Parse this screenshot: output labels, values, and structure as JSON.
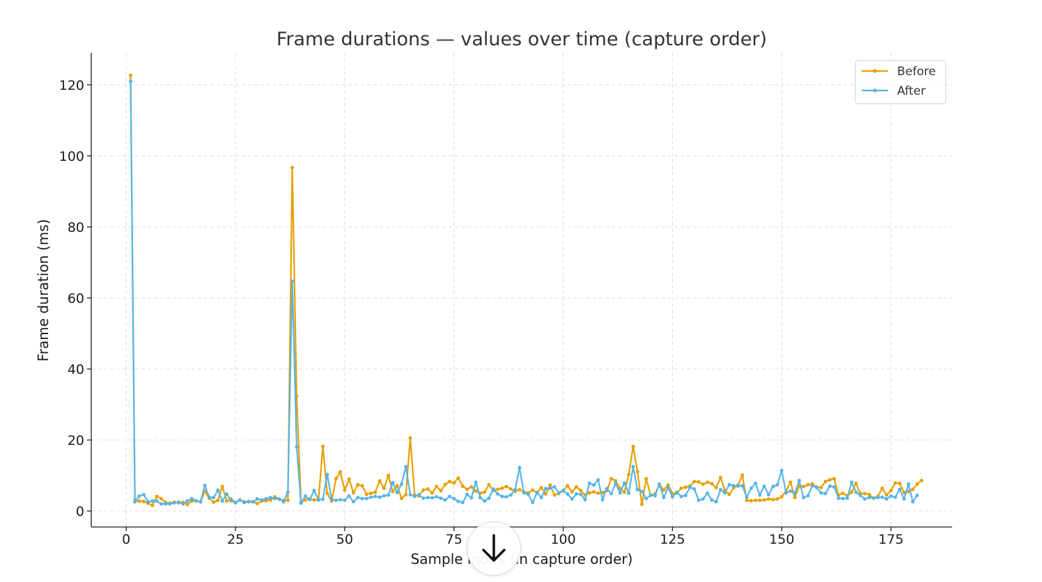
{
  "chart_data": {
    "type": "line",
    "title": "Frame durations — values over time (capture order)",
    "xlabel": "Sample index (in capture order)",
    "ylabel": "Frame duration (ms)",
    "xlim": [
      -8,
      189
    ],
    "ylim": [
      -4.5,
      129
    ],
    "xticks": [
      0,
      25,
      50,
      75,
      100,
      125,
      150,
      175
    ],
    "yticks": [
      0,
      20,
      40,
      60,
      80,
      100,
      120
    ],
    "grid": true,
    "legend_position": "top-right",
    "x_start": 1,
    "series": [
      {
        "name": "Before",
        "color": "#E69F00",
        "values": [
          122.7,
          3.0,
          2.8,
          2.7,
          2.2,
          1.6,
          4.1,
          3.5,
          2.4,
          2.2,
          2.5,
          2.3,
          2.4,
          1.8,
          2.8,
          2.9,
          2.6,
          5.6,
          3.6,
          2.5,
          3.0,
          6.9,
          2.8,
          3.4,
          2.4,
          3.1,
          2.6,
          2.7,
          2.6,
          2.1,
          2.8,
          2.9,
          3.1,
          4.0,
          3.3,
          3.0,
          3.0,
          96.7,
          32.3,
          2.5,
          3.1,
          3.4,
          3.1,
          3.2,
          18.2,
          5.0,
          2.8,
          9.1,
          11.0,
          5.9,
          9.0,
          5.1,
          7.4,
          7.1,
          4.7,
          5.0,
          5.3,
          8.5,
          6.4,
          10.0,
          5.5,
          7.1,
          3.6,
          4.6,
          20.6,
          4.5,
          4.2,
          5.9,
          6.2,
          5.1,
          6.9,
          5.7,
          7.5,
          8.3,
          7.9,
          9.3,
          7.0,
          6.1,
          6.8,
          5.6,
          5.0,
          5.3,
          7.4,
          5.8,
          6.1,
          6.4,
          6.9,
          6.2,
          5.6,
          6.0,
          5.4,
          5.1,
          5.9,
          5.1,
          6.6,
          4.8,
          7.3,
          4.5,
          4.9,
          5.7,
          7.1,
          5.4,
          6.8,
          5.8,
          4.5,
          5.1,
          5.4,
          5.0,
          5.2,
          5.8,
          9.1,
          8.5,
          6.4,
          5.3,
          10.3,
          18.2,
          11.1,
          1.9,
          9.1,
          4.4,
          4.8,
          7.5,
          5.9,
          7.3,
          4.9,
          5.0,
          6.4,
          6.7,
          7.0,
          8.3,
          8.2,
          7.5,
          8.1,
          7.7,
          6.6,
          9.4,
          5.8,
          4.7,
          6.5,
          7.3,
          10.1,
          3.0,
          2.9,
          3.0,
          3.0,
          3.1,
          3.4,
          3.2,
          3.4,
          4.0,
          5.6,
          8.1,
          3.8,
          7.0,
          6.9,
          7.4,
          7.6,
          6.8,
          6.6,
          8.3,
          8.8,
          9.1,
          4.5,
          5.0,
          4.3,
          5.3,
          7.8,
          4.9,
          4.9,
          4.7,
          3.6,
          4.1,
          6.4,
          4.5,
          5.8,
          7.9,
          7.8,
          5.2,
          5.5,
          6.1,
          7.6,
          8.6
        ]
      },
      {
        "name": "After",
        "color": "#56B4E9",
        "values": [
          121.0,
          2.6,
          4.2,
          4.6,
          2.6,
          2.8,
          2.8,
          2.0,
          2.0,
          2.0,
          2.3,
          2.5,
          2.0,
          2.8,
          3.5,
          2.9,
          2.6,
          7.2,
          3.9,
          3.8,
          5.9,
          2.8,
          4.8,
          2.9,
          2.3,
          3.1,
          2.4,
          2.6,
          2.6,
          3.4,
          3.1,
          3.4,
          3.8,
          3.5,
          3.4,
          2.6,
          5.3,
          64.7,
          18.0,
          2.2,
          4.2,
          3.2,
          5.8,
          3.1,
          3.3,
          10.3,
          3.3,
          3.0,
          3.2,
          3.0,
          4.2,
          2.6,
          3.8,
          3.5,
          3.5,
          3.9,
          4.1,
          3.9,
          4.3,
          4.5,
          8.0,
          5.2,
          7.6,
          12.5,
          4.6,
          4.1,
          4.6,
          3.6,
          3.8,
          3.7,
          4.0,
          3.6,
          3.1,
          4.1,
          3.5,
          2.7,
          2.4,
          4.7,
          3.7,
          8.1,
          3.8,
          2.8,
          3.6,
          6.2,
          4.8,
          4.1,
          4.0,
          4.5,
          6.0,
          12.2,
          5.1,
          4.7,
          2.4,
          5.2,
          3.8,
          6.3,
          6.4,
          6.8,
          5.1,
          5.8,
          4.8,
          3.4,
          4.8,
          4.7,
          3.2,
          7.8,
          7.3,
          8.8,
          3.2,
          6.3,
          4.9,
          7.8,
          5.1,
          7.9,
          5.0,
          12.5,
          6.0,
          5.5,
          3.5,
          4.5,
          4.3,
          7.6,
          3.8,
          6.6,
          4.0,
          5.3,
          4.1,
          4.4,
          6.7,
          6.2,
          3.0,
          3.4,
          5.0,
          3.1,
          2.6,
          6.0,
          5.1,
          7.4,
          7.1,
          7.0,
          7.1,
          3.9,
          6.4,
          7.8,
          4.5,
          7.0,
          4.6,
          6.9,
          7.4,
          11.4,
          5.1,
          5.6,
          4.9,
          8.6,
          3.8,
          4.3,
          7.1,
          6.6,
          5.1,
          4.9,
          7.0,
          6.8,
          3.6,
          3.5,
          3.6,
          8.1,
          5.3,
          4.4,
          3.4,
          3.8,
          3.7,
          3.8,
          3.9,
          3.4,
          4.2,
          3.9,
          6.1,
          3.4,
          7.6,
          2.6,
          4.4
        ]
      }
    ]
  }
}
